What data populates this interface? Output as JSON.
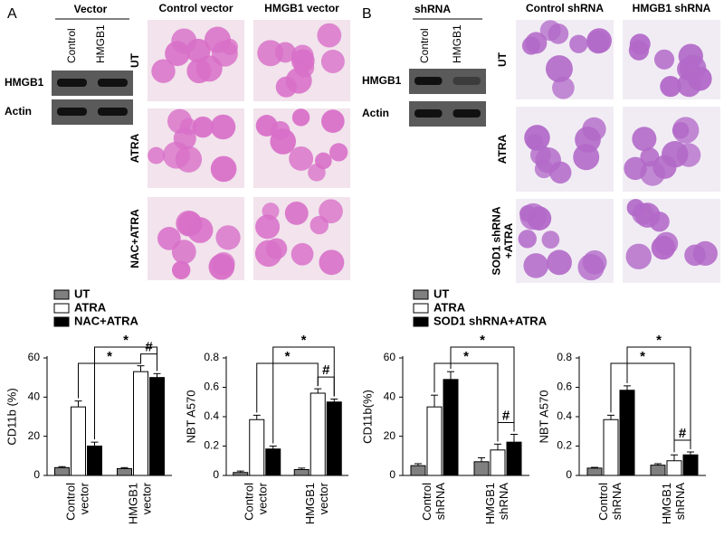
{
  "panels": [
    {
      "label": "A",
      "blot": {
        "header": "Vector",
        "lanes": [
          "Control",
          "HMGB1"
        ],
        "rows": [
          "HMGB1",
          "Actin"
        ]
      },
      "images": {
        "columns": [
          "Control vector",
          "HMGB1 vector"
        ],
        "rows": [
          "UT",
          "ATRA",
          "NAC+ATRA"
        ]
      }
    },
    {
      "label": "B",
      "blot": {
        "header": "shRNA",
        "lanes": [
          "Control",
          "HMGB1"
        ],
        "rows": [
          "HMGB1",
          "Actin"
        ]
      },
      "images": {
        "columns": [
          "Control shRNA",
          "HMGB1 shRNA"
        ],
        "rows": [
          "UT",
          "ATRA",
          "SOD1 shRNA +ATRA"
        ]
      }
    }
  ],
  "chart_data": [
    {
      "type": "bar",
      "ylabel": "CD11b (%)",
      "categories": [
        "Control vector",
        "HMGB1 vector"
      ],
      "series": [
        {
          "name": "UT",
          "color": "#808080",
          "values": [
            4,
            3.5
          ],
          "errors": [
            0.5,
            0.5
          ]
        },
        {
          "name": "ATRA",
          "color": "#ffffff",
          "values": [
            35,
            53
          ],
          "errors": [
            3,
            3
          ]
        },
        {
          "name": "NAC+ATRA",
          "color": "#000000",
          "values": [
            15,
            50
          ],
          "errors": [
            2,
            2
          ]
        }
      ],
      "ylim": [
        0,
        60
      ],
      "yticks": [
        0,
        20,
        40,
        60
      ],
      "annotations": [
        "*",
        "*",
        "#"
      ]
    },
    {
      "type": "bar",
      "ylabel": "NBT A570",
      "categories": [
        "Control vector",
        "HMGB1 vector"
      ],
      "series": [
        {
          "color": "#808080",
          "values": [
            0.02,
            0.04
          ],
          "errors": [
            0.01,
            0.01
          ]
        },
        {
          "color": "#ffffff",
          "values": [
            0.38,
            0.56
          ],
          "errors": [
            0.03,
            0.03
          ]
        },
        {
          "color": "#000000",
          "values": [
            0.18,
            0.5
          ],
          "errors": [
            0.02,
            0.02
          ]
        }
      ],
      "ylim": [
        0,
        0.8
      ],
      "yticks": [
        0,
        0.2,
        0.4,
        0.6,
        0.8
      ],
      "annotations": [
        "*",
        "*",
        "#"
      ]
    },
    {
      "type": "bar",
      "ylabel": "CD11b(%)",
      "categories": [
        "Control shRNA",
        "HMGB1 shRNA"
      ],
      "series": [
        {
          "name": "UT",
          "color": "#808080",
          "values": [
            5,
            7
          ],
          "errors": [
            1,
            2
          ]
        },
        {
          "name": "ATRA",
          "color": "#ffffff",
          "values": [
            35,
            13
          ],
          "errors": [
            6,
            3
          ]
        },
        {
          "name": "SOD1 shRNA+ATRA",
          "color": "#000000",
          "values": [
            49,
            17
          ],
          "errors": [
            4,
            4
          ]
        }
      ],
      "ylim": [
        0,
        60
      ],
      "yticks": [
        0,
        20,
        40,
        60
      ],
      "annotations": [
        "*",
        "*",
        "#"
      ]
    },
    {
      "type": "bar",
      "ylabel": "NBT A570",
      "categories": [
        "Control shRNA",
        "HMGB1 shRNA"
      ],
      "series": [
        {
          "color": "#808080",
          "values": [
            0.05,
            0.07
          ],
          "errors": [
            0.005,
            0.01
          ]
        },
        {
          "color": "#ffffff",
          "values": [
            0.38,
            0.1
          ],
          "errors": [
            0.03,
            0.04
          ]
        },
        {
          "color": "#000000",
          "values": [
            0.58,
            0.14
          ],
          "errors": [
            0.03,
            0.02
          ]
        }
      ],
      "ylim": [
        0,
        0.8
      ],
      "yticks": [
        0,
        0.2,
        0.4,
        0.6,
        0.8
      ],
      "annotations": [
        "*",
        "*",
        "#"
      ]
    }
  ]
}
